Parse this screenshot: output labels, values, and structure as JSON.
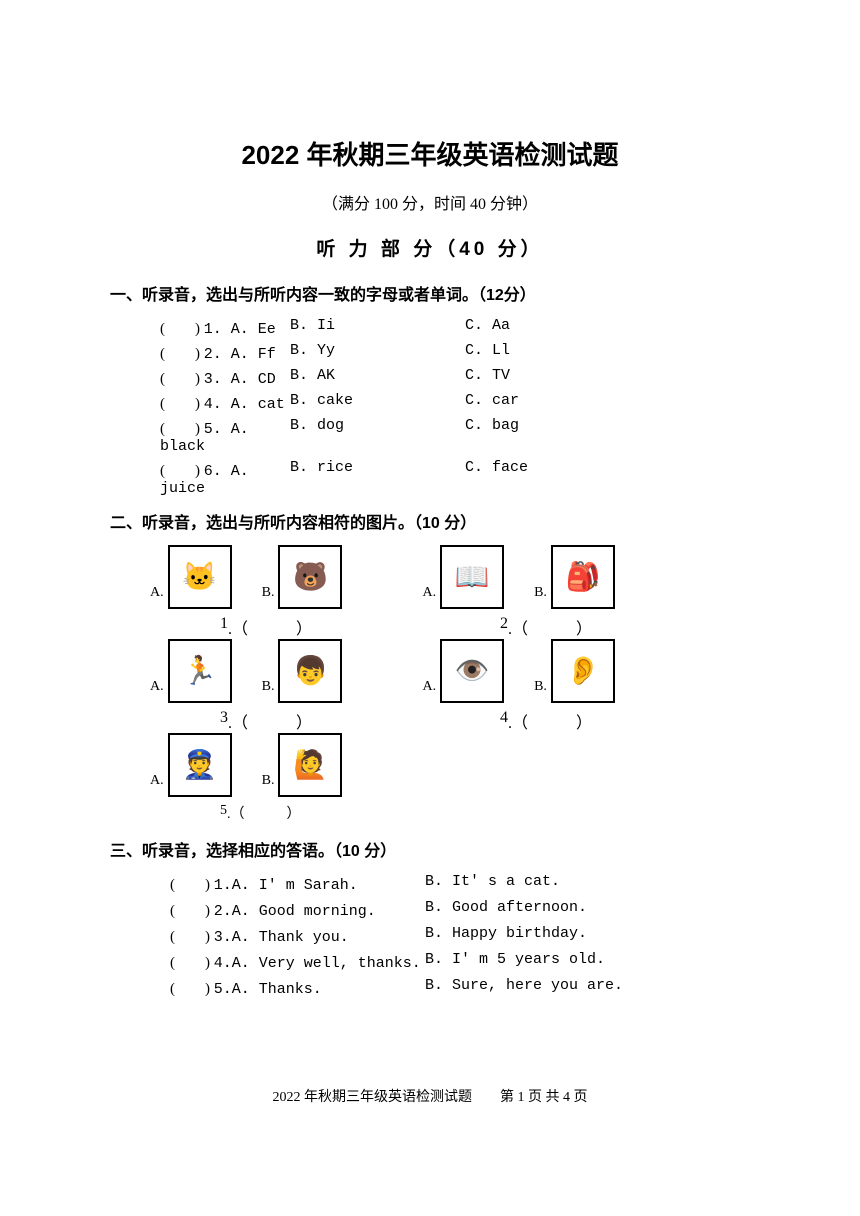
{
  "title": "2022 年秋期三年级英语检测试题",
  "subtitle": "（满分 100 分，时间 40 分钟）",
  "section_title": "听 力 部 分（40 分）",
  "q1": {
    "header": "一、听录音，选出与所听内容一致的字母或者单词。（12分）",
    "rows": [
      {
        "n": "1",
        "a": "Ee",
        "b": "Ii",
        "c": "Aa"
      },
      {
        "n": "2",
        "a": "Ff",
        "b": "Yy",
        "c": "Ll"
      },
      {
        "n": "3",
        "a": "CD",
        "b": "AK",
        "c": "TV"
      },
      {
        "n": "4",
        "a": "cat",
        "b": "cake",
        "c": "car"
      },
      {
        "n": "5",
        "a": "black",
        "b": "dog",
        "c": "bag"
      },
      {
        "n": "6",
        "a": "juice",
        "b": "rice",
        "c": "face"
      }
    ]
  },
  "q2": {
    "header": "二、听录音，选出与所听内容相符的图片。（10 分）",
    "pairs": [
      {
        "n": "1",
        "a_icon": "🐱",
        "b_icon": "🐻"
      },
      {
        "n": "2",
        "a_icon": "📖",
        "b_icon": "🎒"
      },
      {
        "n": "3",
        "a_icon": "🏃",
        "b_icon": "👦"
      },
      {
        "n": "4",
        "a_icon": "👁️",
        "b_icon": "👂"
      },
      {
        "n": "5",
        "a_icon": "👮",
        "b_icon": "🙋"
      }
    ]
  },
  "q3": {
    "header": "三、听录音，选择相应的答语。（10 分）",
    "rows": [
      {
        "n": "1",
        "a": "A. I' m Sarah.",
        "b": "B. It' s a cat."
      },
      {
        "n": "2",
        "a": "A. Good morning.",
        "b": "B. Good afternoon."
      },
      {
        "n": "3",
        "a": "A. Thank you.",
        "b": "B. Happy birthday."
      },
      {
        "n": "4",
        "a": "A. Very well, thanks.",
        "b": "B. I' m 5 years old."
      },
      {
        "n": "5",
        "a": "A. Thanks.",
        "b": "B. Sure, here you are."
      }
    ]
  },
  "footer": "2022 年秋期三年级英语检测试题　　第 1 页 共 4 页",
  "labels": {
    "A": "A.",
    "B": "B.",
    "C": "C.",
    "lparen": "(",
    "rparen": ")"
  }
}
